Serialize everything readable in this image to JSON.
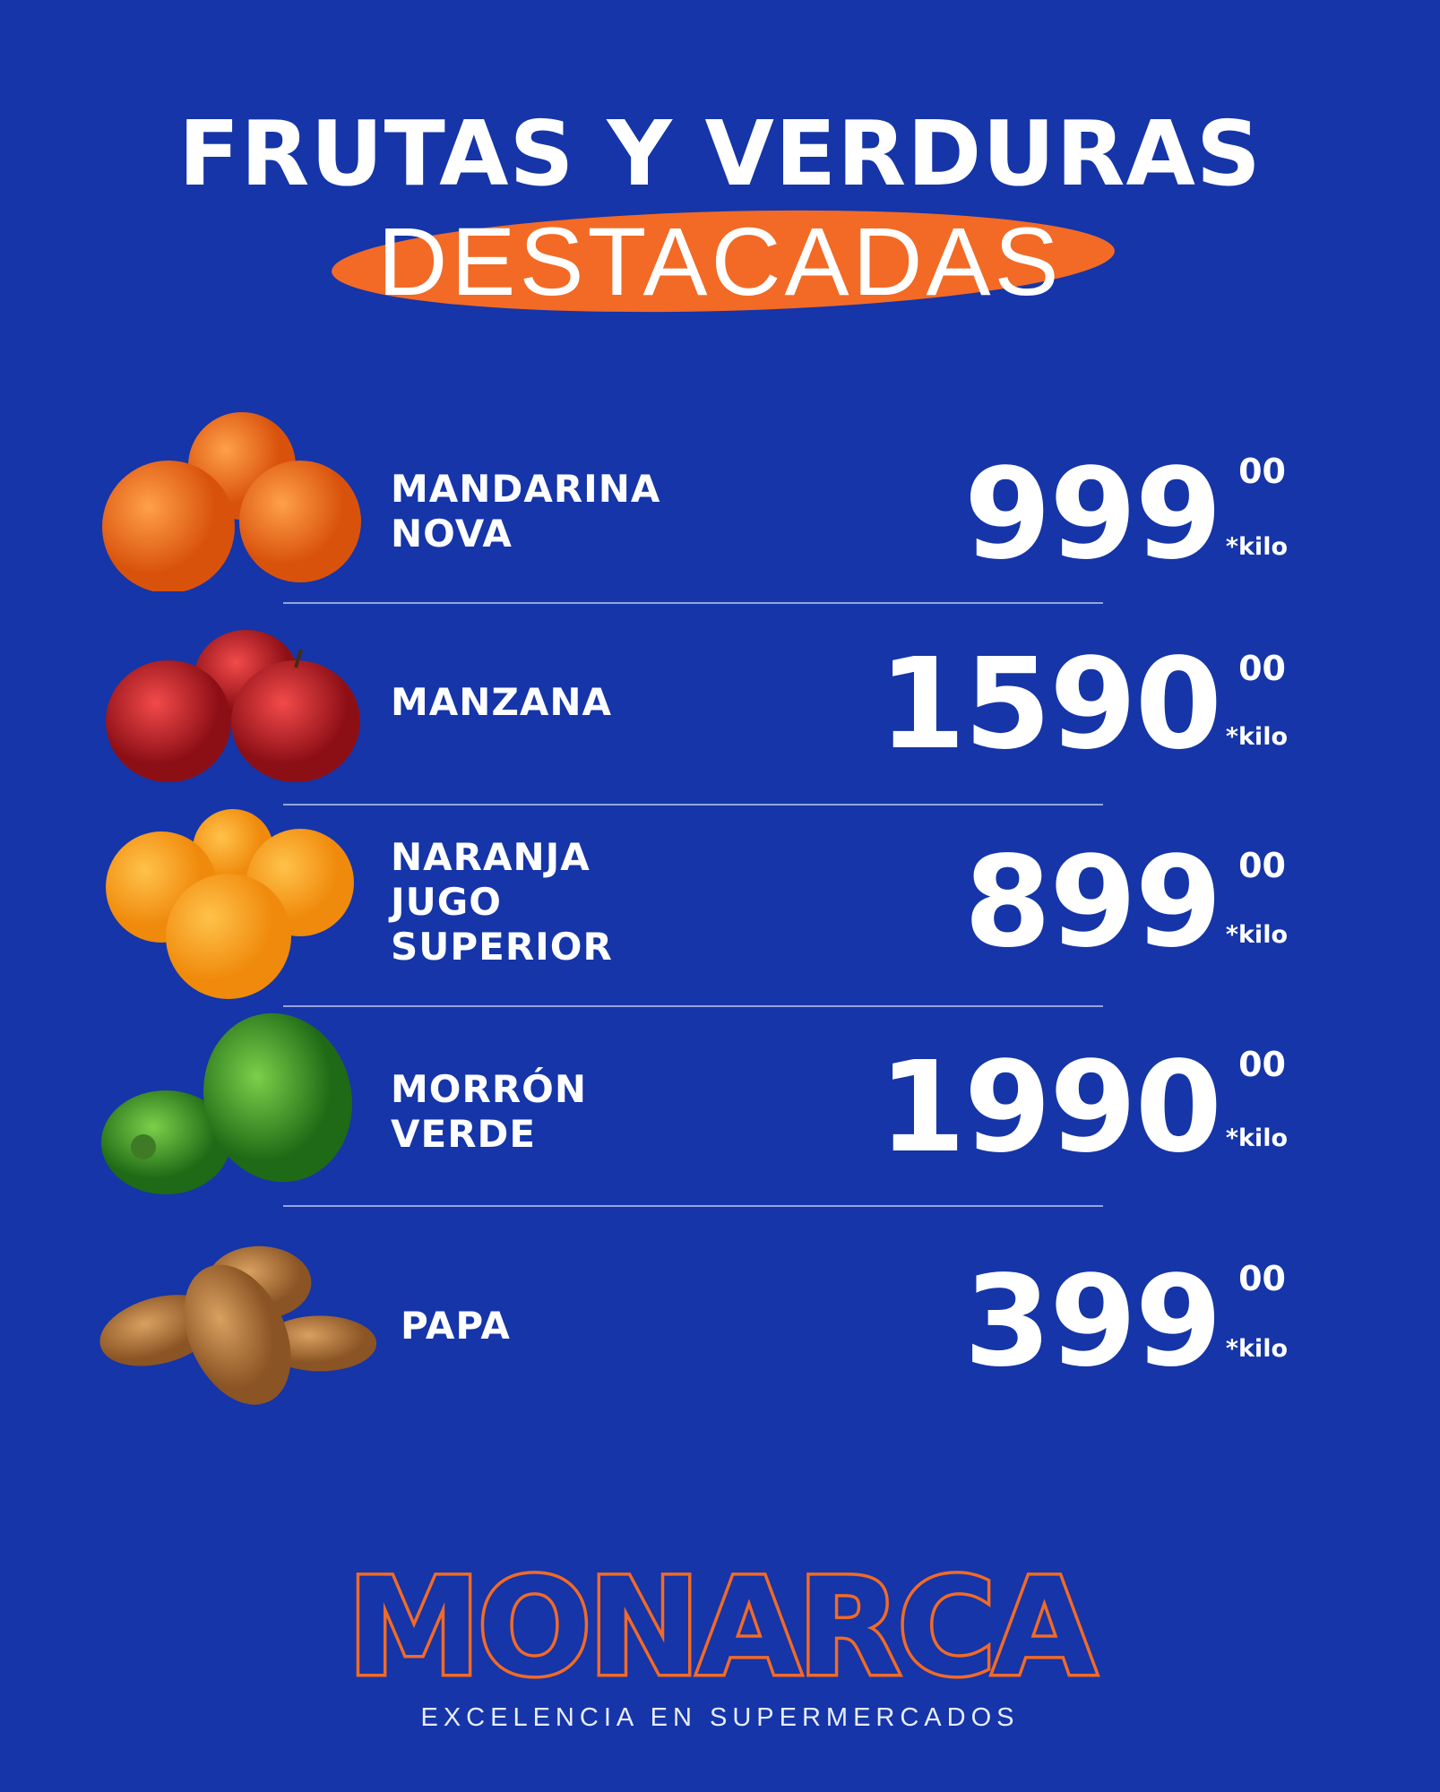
{
  "header": {
    "title": "FRUTAS Y VERDURAS",
    "subtitle": "DESTACADAS"
  },
  "colors": {
    "background": "#1535a8",
    "accent": "#f26a25",
    "text": "#ffffff"
  },
  "products": [
    {
      "name_lines": [
        "MANDARINA",
        "NOVA"
      ],
      "price": "999",
      "cents": "00",
      "unit": "*kilo",
      "icon": "mandarin-image"
    },
    {
      "name_lines": [
        "MANZANA"
      ],
      "price": "1590",
      "cents": "00",
      "unit": "*kilo",
      "icon": "apple-image"
    },
    {
      "name_lines": [
        "NARANJA",
        "JUGO",
        "SUPERIOR"
      ],
      "price": "899",
      "cents": "00",
      "unit": "*kilo",
      "icon": "orange-image"
    },
    {
      "name_lines": [
        "MORRÓN",
        "VERDE"
      ],
      "price": "1990",
      "cents": "00",
      "unit": "*kilo",
      "icon": "green-pepper-image"
    },
    {
      "name_lines": [
        "PAPA"
      ],
      "price": "399",
      "cents": "00",
      "unit": "*kilo",
      "icon": "potato-image"
    }
  ],
  "brand": {
    "logo": "MONARCA",
    "tagline": "EXCELENCIA EN SUPERMERCADOS"
  }
}
